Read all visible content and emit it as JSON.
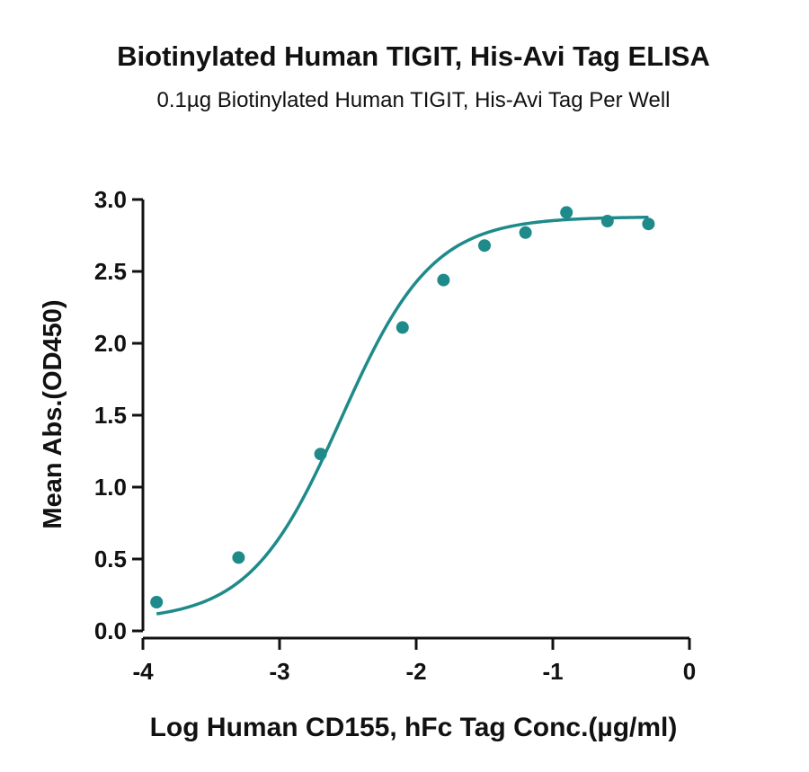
{
  "chart_data": {
    "type": "scatter",
    "title": "Biotinylated Human TIGIT, His-Avi Tag ELISA",
    "subtitle": "0.1µg Biotinylated Human TIGIT, His-Avi Tag Per Well",
    "xlabel": "Log Human CD155, hFc Tag Conc.(µg/ml)",
    "ylabel": "Mean Abs.(OD450)",
    "xlim": [
      -4,
      0
    ],
    "ylim": [
      0,
      3
    ],
    "x_ticks": [
      -4,
      -3,
      -2,
      -1,
      0
    ],
    "x_tick_labels": [
      "-4",
      "-3",
      "-2",
      "-1",
      "0"
    ],
    "y_ticks": [
      0,
      0.5,
      1,
      1.5,
      2,
      2.5,
      3
    ],
    "y_tick_labels": [
      "0.0",
      "0.5",
      "1.0",
      "1.5",
      "2.0",
      "2.5",
      "3.0"
    ],
    "grid": false,
    "legend": "none",
    "color": "#1f8a8a",
    "series": [
      {
        "points": {
          "x": [
            -3.9,
            -3.3,
            -2.7,
            -2.1,
            -1.8,
            -1.5,
            -1.2,
            -0.9,
            -0.6,
            -0.3
          ],
          "y": [
            0.2,
            0.51,
            1.23,
            2.11,
            2.44,
            2.68,
            2.77,
            2.91,
            2.85,
            2.83
          ]
        },
        "fit_curve": {
          "model": "4PL",
          "bottom": 0.07,
          "top": 2.88,
          "log_ec50": -2.55,
          "hill_slope": 1.3,
          "x_range": [
            -3.9,
            -0.3
          ]
        }
      }
    ]
  }
}
